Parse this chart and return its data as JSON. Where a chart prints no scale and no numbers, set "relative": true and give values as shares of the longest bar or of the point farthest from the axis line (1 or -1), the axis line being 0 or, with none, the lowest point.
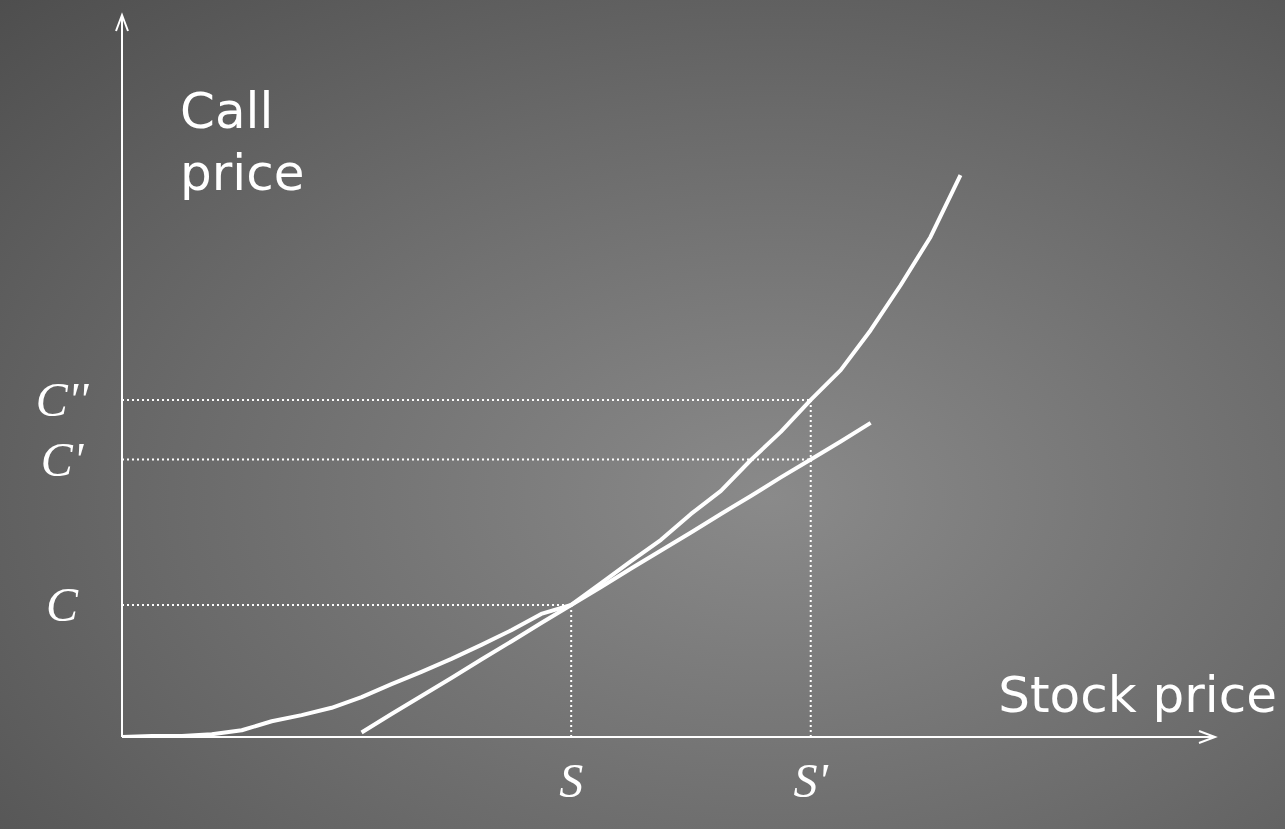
{
  "chart_data": {
    "type": "line",
    "relative": true,
    "xlabel": "Stock price",
    "ylabel": "Call price",
    "marker": "none",
    "line_style": "solid",
    "categories": [
      null,
      null,
      null,
      null,
      null,
      null,
      null,
      null,
      null,
      null,
      null,
      null,
      null,
      null,
      null,
      "S",
      null,
      null,
      null,
      null,
      null,
      null,
      null,
      "S'",
      null,
      null,
      null,
      null,
      null,
      null,
      null,
      null,
      null,
      null,
      null,
      null,
      null
    ],
    "series": [
      {
        "color": "#ffffff",
        "values": [
          0,
          0.002,
          0.002,
          0.005,
          0.012,
          0.028,
          0.039,
          0.052,
          0.071,
          0.094,
          0.116,
          0.139,
          0.164,
          0.19,
          0.219,
          0.235,
          0.274,
          0.313,
          0.351,
          0.397,
          0.438,
          0.493,
          0.543,
          0.6,
          0.653,
          0.724,
          0.804,
          0.89,
          1.0,
          null,
          null,
          null,
          null,
          null,
          null,
          null,
          null
        ]
      },
      {
        "color": "#ffffff",
        "values": [
          null,
          null,
          null,
          null,
          null,
          null,
          null,
          null,
          0.008,
          0.041,
          0.073,
          0.105,
          0.138,
          0.17,
          0.203,
          0.235,
          0.267,
          0.3,
          0.332,
          0.364,
          0.397,
          0.429,
          0.462,
          0.494,
          0.526,
          0.559,
          null,
          null,
          null,
          null,
          null,
          null,
          null,
          null,
          null,
          null,
          null
        ]
      }
    ],
    "ref_lines": [
      {
        "axis": "x",
        "value": "S",
        "color": "#ffffff",
        "line_style": "dotted"
      },
      {
        "axis": "x",
        "value": "S'",
        "color": "#ffffff",
        "line_style": "dotted"
      },
      {
        "axis": "y",
        "value": 0.235,
        "label": "C",
        "color": "#ffffff",
        "line_style": "dotted"
      },
      {
        "axis": "y",
        "value": 0.494,
        "label": "C'",
        "color": "#ffffff",
        "line_style": "dotted"
      },
      {
        "axis": "y",
        "value": 0.6,
        "label": "C''",
        "color": "#ffffff",
        "line_style": "dotted"
      }
    ]
  }
}
